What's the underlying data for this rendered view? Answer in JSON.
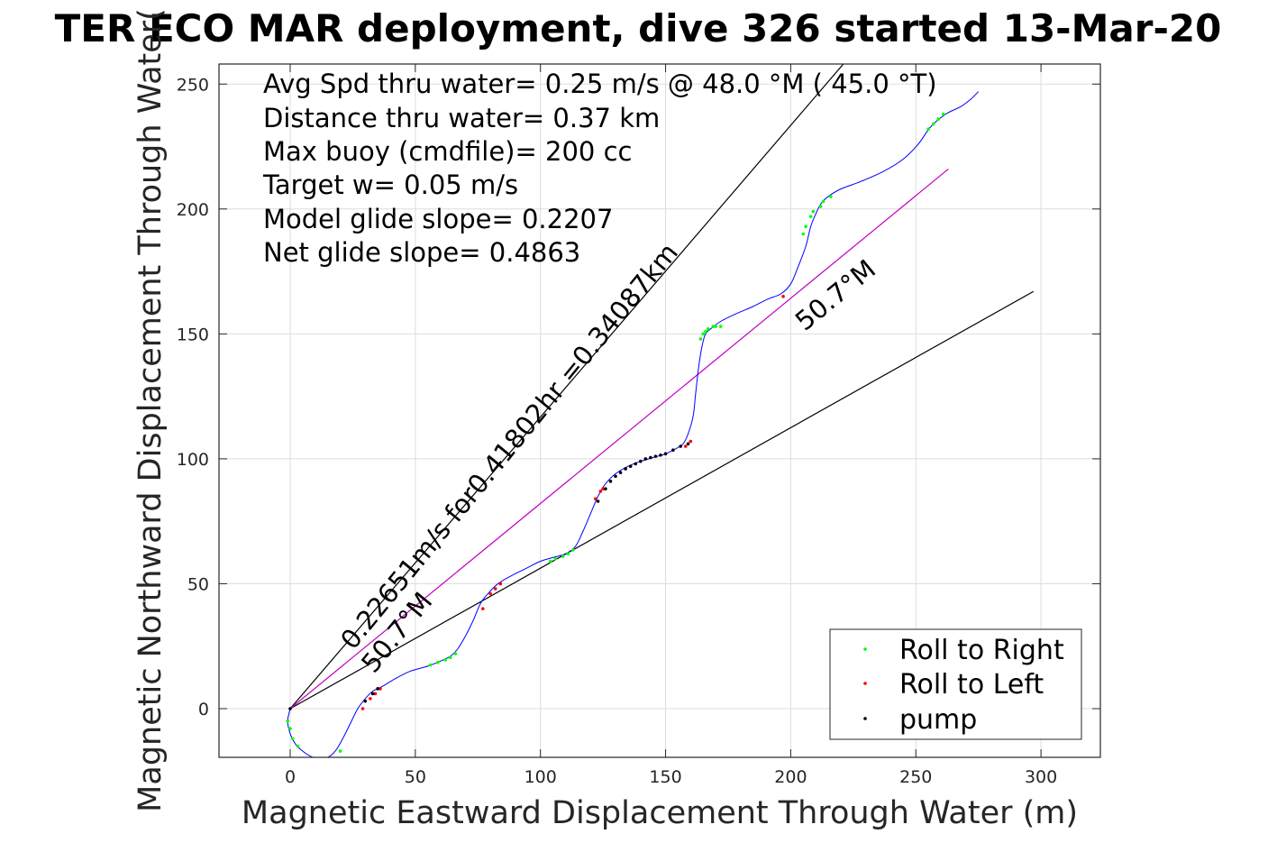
{
  "chart_data": {
    "type": "line",
    "title": "TER ECO MAR deployment, dive 326 started 13-Mar-20",
    "xlabel": "Magnetic Eastward Displacement Through Water (m)",
    "ylabel": "Magnetic Northward Displacement Through Water(",
    "xlim": [
      -28,
      325
    ],
    "ylim": [
      -20,
      260
    ],
    "xticks": [
      0,
      50,
      100,
      150,
      200,
      250,
      300
    ],
    "yticks": [
      0,
      50,
      100,
      150,
      200,
      250
    ],
    "xtick_labels": [
      "0",
      "50",
      "100",
      "150",
      "200",
      "250",
      "300"
    ],
    "ytick_labels": [
      "0",
      "50",
      "100",
      "150",
      "200",
      "250"
    ],
    "grid": true,
    "legend_position": "bottom-right",
    "info_lines": [
      "Avg Spd thru water=  0.25 m/s @  48.0 °M ( 45.0 °T)",
      "Distance thru water=  0.37 km",
      "Max buoy (cmdfile)= 200 cc",
      "Target w= 0.05 m/s",
      "Model glide slope= 0.2207",
      "Net glide slope= 0.4863"
    ],
    "annotations": {
      "track_label": "0.22651m/s for0.41802hr =0.34087km",
      "heading_label_upper": "50.7°M",
      "heading_label_lower": "50.7°M"
    },
    "track": {
      "color": "#0000ff",
      "x": [
        0,
        -1,
        0,
        2,
        5,
        8,
        11,
        15,
        18,
        21,
        24,
        27,
        30,
        33,
        37,
        42,
        48,
        55,
        60,
        64,
        67,
        70,
        73,
        76,
        79,
        83,
        88,
        94,
        100,
        105,
        110,
        114,
        117,
        120,
        123,
        126,
        130,
        135,
        140,
        145,
        150,
        154,
        157,
        159,
        161,
        162,
        163,
        164,
        165,
        166,
        168,
        172,
        178,
        185,
        191,
        196,
        200,
        203,
        206,
        208,
        210,
        212,
        215,
        220,
        228,
        237,
        245,
        251,
        256,
        262,
        268,
        272,
        275
      ],
      "y": [
        0,
        -5,
        -10,
        -14,
        -17,
        -19,
        -20,
        -19.5,
        -17,
        -12,
        -6,
        0,
        4,
        7,
        9,
        12,
        15,
        17,
        19,
        21,
        24,
        29,
        35,
        42,
        46,
        50,
        53,
        56,
        59,
        60.5,
        62,
        65,
        71,
        78,
        85,
        90,
        94,
        97,
        99,
        100.5,
        102,
        104,
        106,
        110,
        117,
        126,
        135,
        142,
        147,
        150,
        152,
        155,
        158,
        161,
        164,
        166,
        170,
        177,
        185,
        193,
        198,
        202,
        205,
        208,
        211,
        215,
        220,
        226,
        233,
        238,
        241,
        244,
        247
      ]
    },
    "series": [
      {
        "name": "Roll to Right",
        "color": "#00ff00",
        "x": [
          -1,
          0,
          1,
          3,
          20,
          56,
          59,
          62,
          64,
          66,
          104,
          106,
          109,
          111,
          113,
          164,
          165,
          166,
          167,
          169,
          170,
          172,
          205,
          206,
          208,
          209,
          212,
          213,
          216,
          255,
          257,
          259,
          261
        ],
        "y": [
          -5,
          -8,
          -12,
          -15,
          -17,
          17.5,
          18.5,
          19.5,
          20.5,
          22,
          59,
          60,
          61,
          62,
          63.5,
          148,
          150,
          151,
          152,
          153,
          153,
          153,
          190,
          193,
          197,
          199,
          201,
          203,
          205,
          232,
          234,
          236,
          238
        ]
      },
      {
        "name": "Roll to Left",
        "color": "#ff0000",
        "x": [
          29,
          32,
          34,
          36,
          77,
          80,
          82,
          84,
          122,
          124,
          125,
          158,
          160,
          197
        ],
        "y": [
          0,
          4,
          6,
          8,
          40,
          46,
          48,
          50,
          84,
          87,
          88,
          105,
          107,
          165
        ]
      },
      {
        "name": "pump",
        "color": "#000000",
        "x": [
          0,
          30,
          33,
          35,
          123,
          126,
          128,
          130,
          132,
          134,
          136,
          138,
          140,
          142,
          144,
          146,
          148,
          150,
          153,
          156,
          159
        ],
        "y": [
          0,
          3,
          6,
          8,
          83,
          88,
          91,
          93,
          94.5,
          96,
          97,
          98,
          99,
          100,
          100.5,
          101,
          101.5,
          102,
          103.5,
          105,
          106
        ]
      }
    ],
    "reference_lines": [
      {
        "name": "upper heading line",
        "color": "#000000",
        "x": [
          0,
          221
        ],
        "y": [
          0,
          258
        ]
      },
      {
        "name": "lower heading line",
        "color": "#000000",
        "x": [
          0,
          297
        ],
        "y": [
          0,
          167
        ]
      },
      {
        "name": "net displacement line",
        "color": "#c000c0",
        "x": [
          0,
          263
        ],
        "y": [
          0,
          216
        ]
      }
    ]
  }
}
